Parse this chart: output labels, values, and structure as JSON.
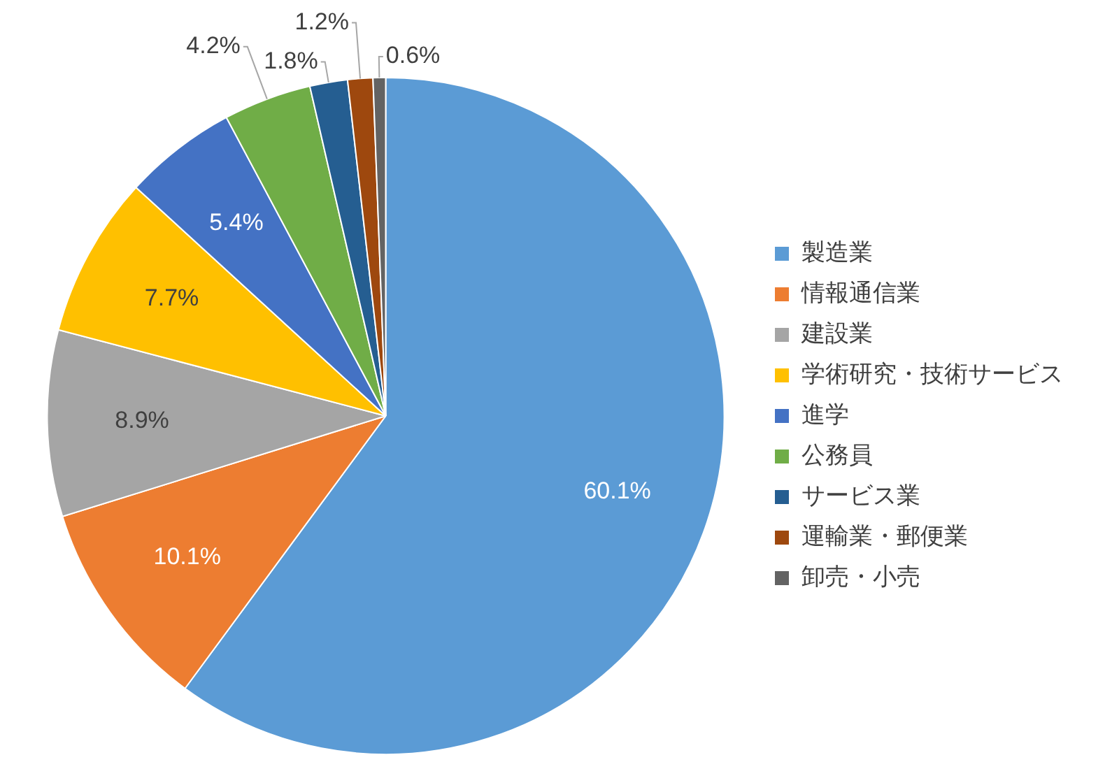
{
  "chart_data": {
    "type": "pie",
    "categories": [
      "製造業",
      "情報通信業",
      "建設業",
      "学術研究・技術サービス",
      "進学",
      "公務員",
      "サービス業",
      "運輸業・郵便業",
      "卸売・小売"
    ],
    "values": [
      60.1,
      10.1,
      8.9,
      7.7,
      5.4,
      4.2,
      1.8,
      1.2,
      0.6
    ],
    "value_labels": [
      "60.1%",
      "10.1%",
      "8.9%",
      "7.7%",
      "5.4%",
      "4.2%",
      "1.8%",
      "1.2%",
      "0.6%"
    ],
    "colors": [
      "#5b9bd5",
      "#ed7d31",
      "#a5a5a5",
      "#ffc000",
      "#4472c4",
      "#70ad47",
      "#255e91",
      "#9e480e",
      "#636363"
    ],
    "legend": "right"
  }
}
